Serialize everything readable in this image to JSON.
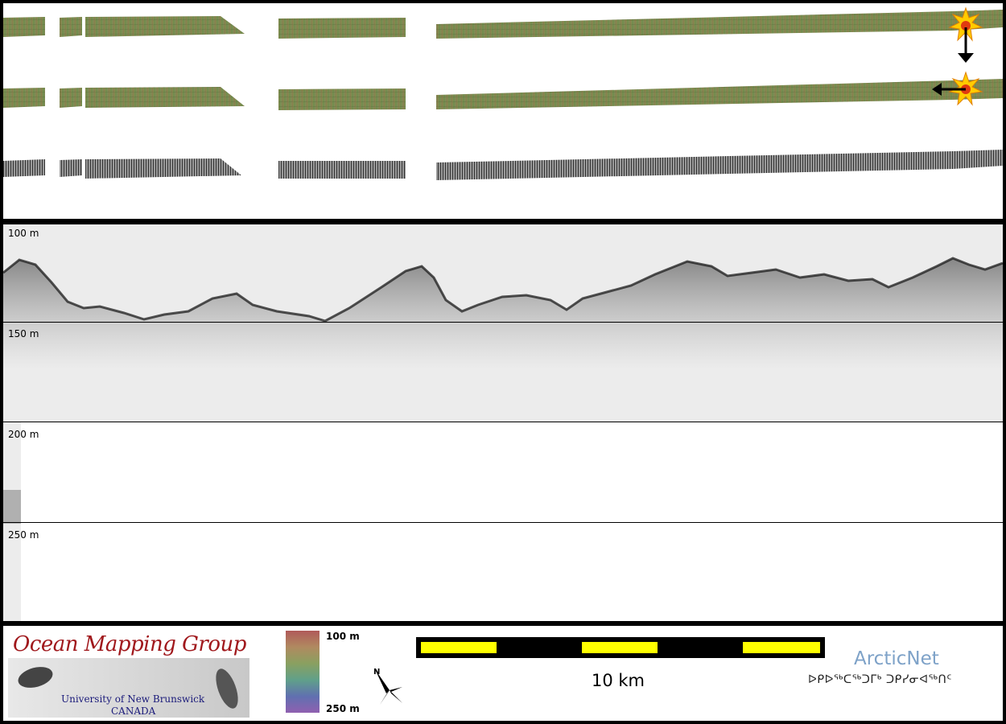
{
  "depth_labels": [
    "100 m",
    "150 m",
    "200 m",
    "250 m"
  ],
  "logo": {
    "title": "Ocean Mapping Group",
    "university": "University of New Brunswick",
    "country": "CANADA"
  },
  "colorbar": {
    "top_label": "100 m",
    "bottom_label": "250 m"
  },
  "north_arrow_label": "N",
  "scale_bar": {
    "label": "10 km",
    "segments": 5
  },
  "partner": {
    "name": "ArcticNet",
    "syllabics": "ᐅᑭᐅᖅᑕᖅᑐᒥᒃ ᑐᑭᓯᓂᐊᖅᑎᑦ"
  },
  "colors": {
    "border": "#000000",
    "scale_fill": "#ffff00",
    "omg_red": "#a0181c",
    "arcticnet_blue": "#7ea2c8"
  }
}
